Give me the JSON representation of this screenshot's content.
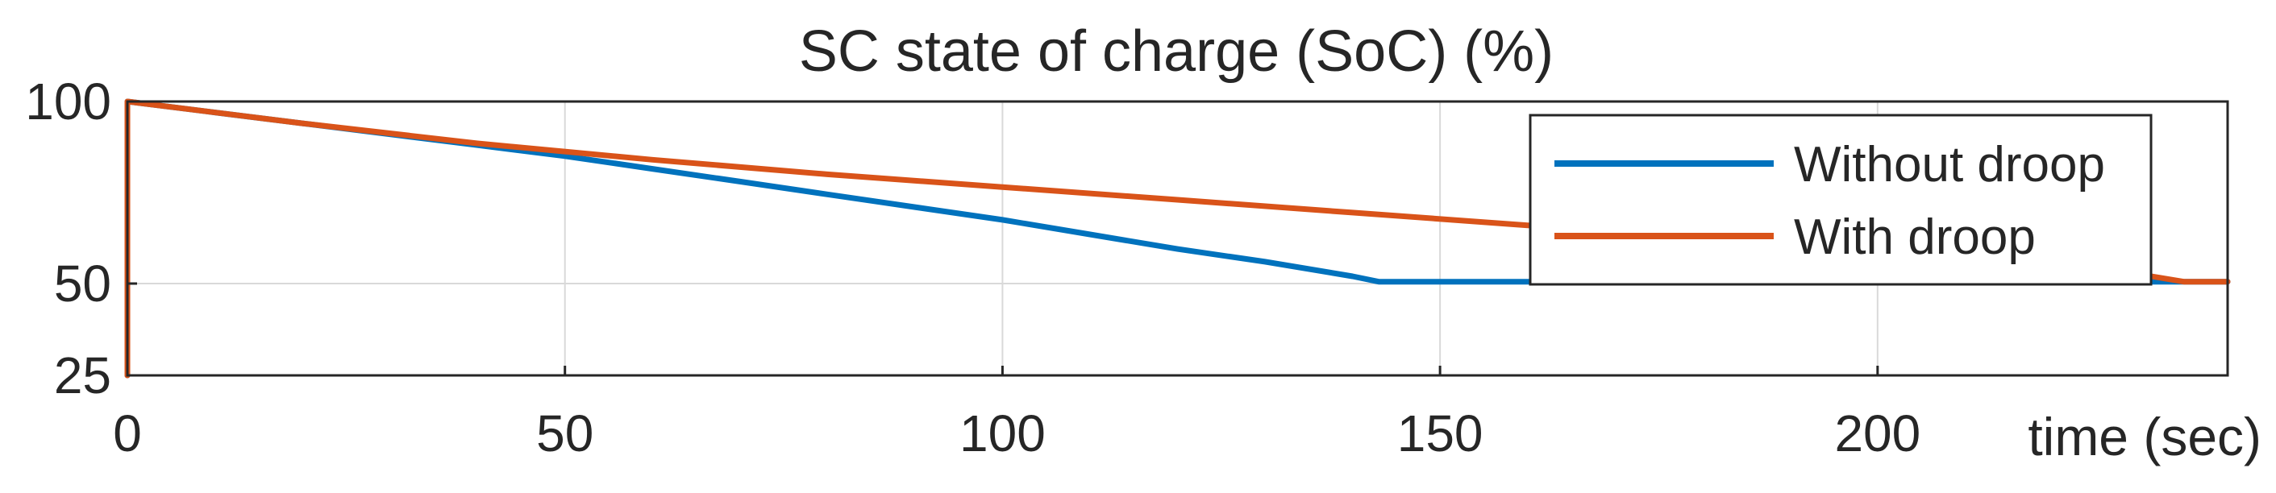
{
  "chart_data": {
    "type": "line",
    "title": "SC state of charge (SoC) (%)",
    "xlabel": "time (sec)",
    "ylabel": "",
    "xlim": [
      0,
      240
    ],
    "ylim": [
      25,
      100
    ],
    "xticks": [
      0,
      50,
      100,
      150,
      200
    ],
    "yticks": [
      25,
      50,
      100
    ],
    "grid": true,
    "legend_position": "top-right",
    "series": [
      {
        "name": "Without droop",
        "color": "#0072BD",
        "x": [
          0,
          0,
          10,
          20,
          30,
          40,
          50,
          60,
          70,
          80,
          90,
          100,
          110,
          120,
          130,
          140,
          143,
          240
        ],
        "y": [
          25,
          100,
          97,
          94,
          91,
          88,
          85,
          81.5,
          78,
          74.5,
          71,
          67.5,
          63.5,
          59.5,
          56,
          52,
          50.5,
          50.5
        ]
      },
      {
        "name": "With droop",
        "color": "#D95319",
        "x": [
          0,
          0,
          20,
          40,
          60,
          80,
          100,
          120,
          140,
          160,
          180,
          200,
          220,
          235,
          240
        ],
        "y": [
          25,
          100,
          94,
          88.5,
          84,
          80,
          76.5,
          73,
          69.5,
          66,
          63,
          60,
          56.5,
          50.5,
          50.5
        ]
      }
    ]
  }
}
